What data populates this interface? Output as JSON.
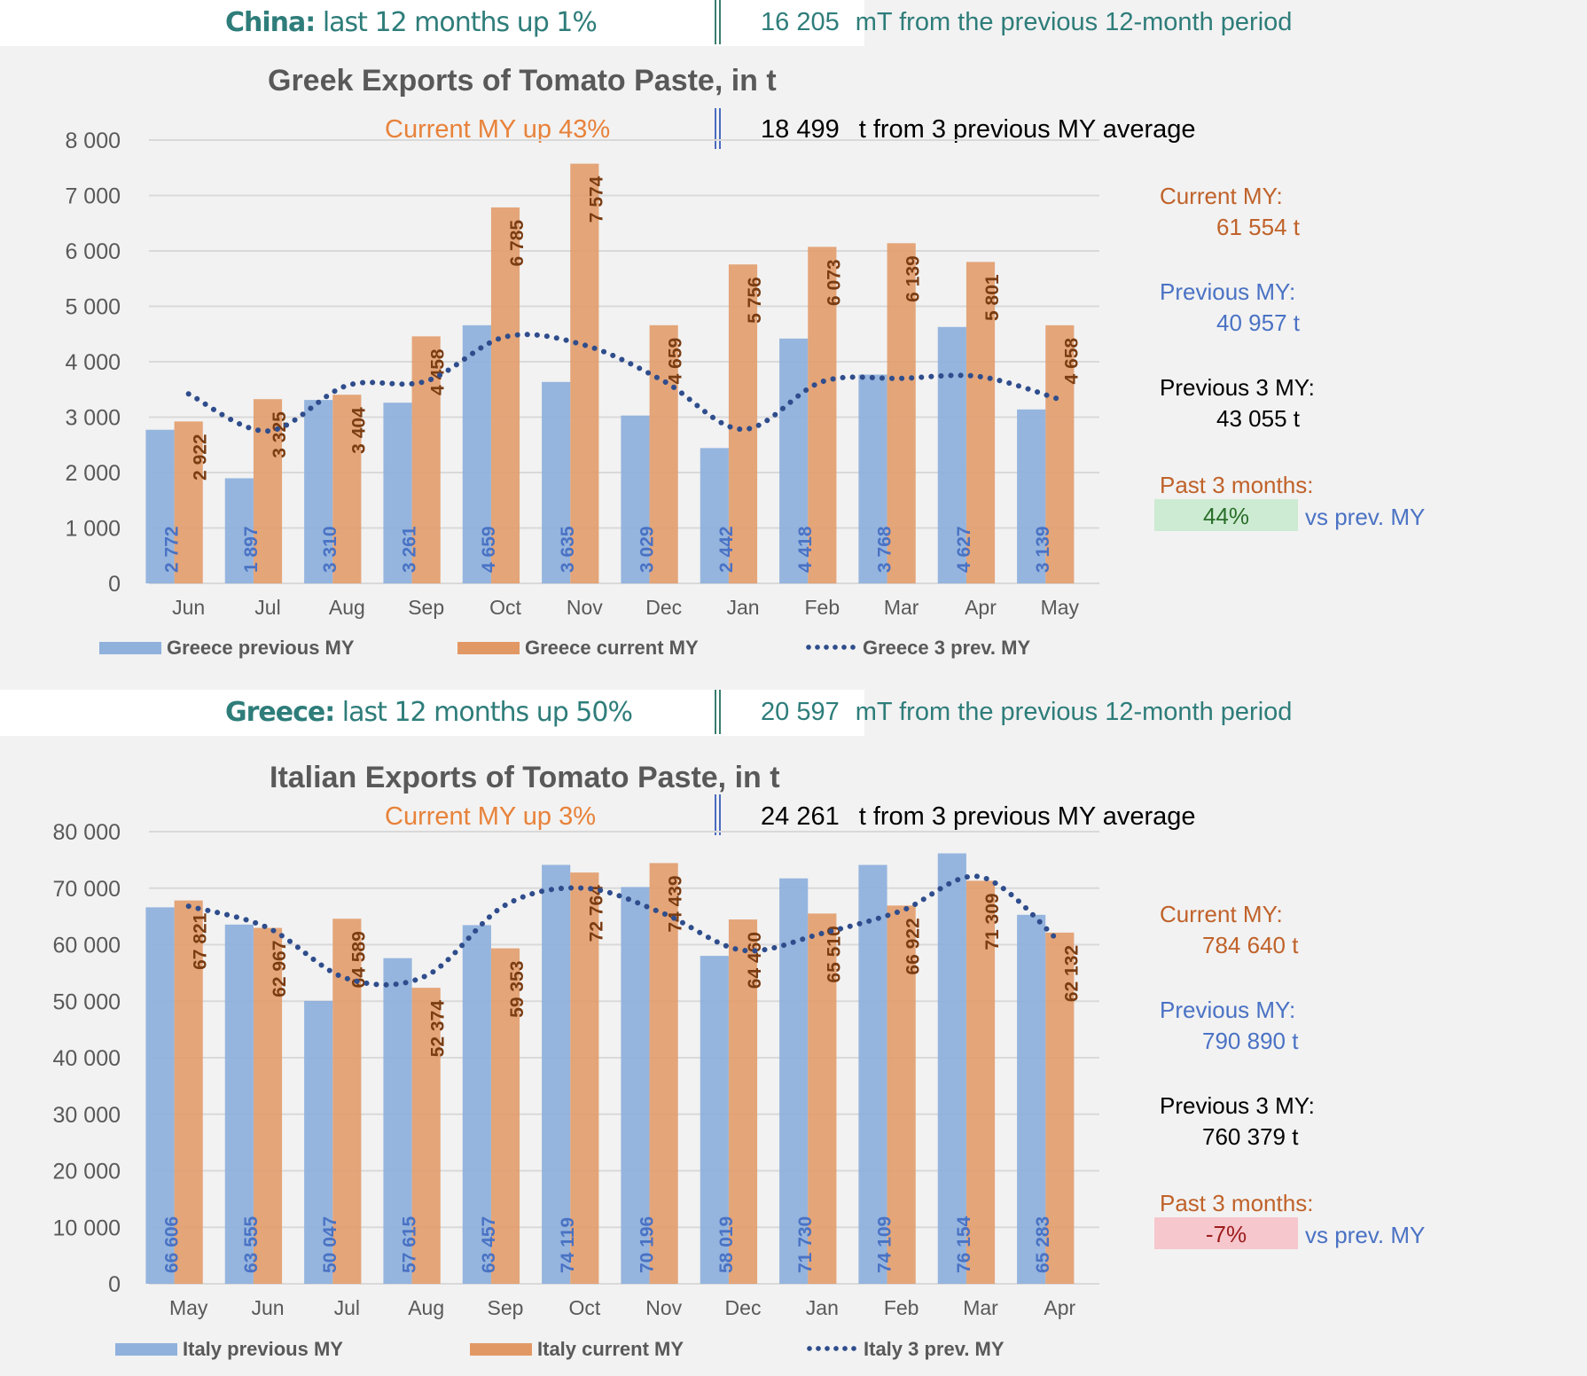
{
  "colors": {
    "prev_bar": "#8fb1dc",
    "curr_bar": "#e29864",
    "avg_line": "#2f4d8c",
    "prev_label": "#4a72c4",
    "curr_label": "#7a3c12",
    "grid": "#d9d9d9",
    "axis_text": "#595959"
  },
  "top_banner": {
    "country": "China:",
    "text": "last 12 months up  1%",
    "value": "16 205",
    "suffix": "mT from the previous 12-month period"
  },
  "greek": {
    "subtitle_left": "Current MY up  43%",
    "subtitle_value": "18 499",
    "subtitle_right": "t from 3 previous MY average",
    "side": {
      "current_label": "Current MY:",
      "current_value": "61 554  t",
      "previous_label": "Previous MY:",
      "previous_value": "40 957  t",
      "prev3_label": "Previous 3 MY:",
      "prev3_value": "43 055  t",
      "past3_label": "Past 3 months:",
      "past3_pct": "44%",
      "past3_suffix": "vs prev. MY"
    },
    "legend": {
      "prev": "Greece previous MY",
      "curr": "Greece current MY",
      "avg": "Greece 3 prev. MY"
    }
  },
  "mid_banner": {
    "country": "Greece:",
    "text": "last 12 months up  50%",
    "value": "20 597",
    "suffix": "mT from the previous 12-month period"
  },
  "italian": {
    "subtitle_left": "Current MY up  3%",
    "subtitle_value": "24 261",
    "subtitle_right": "t from 3 previous MY average",
    "side": {
      "current_label": "Current MY:",
      "current_value": "784 640  t",
      "previous_label": "Previous MY:",
      "previous_value": "790 890  t",
      "prev3_label": "Previous 3 MY:",
      "prev3_value": "760 379  t",
      "past3_label": "Past 3 months:",
      "past3_pct": "-7%",
      "past3_suffix": "vs prev. MY"
    },
    "legend": {
      "prev": "Italy previous MY",
      "curr": "Italy current MY",
      "avg": "Italy 3 prev. MY"
    }
  },
  "chart_data": [
    {
      "type": "bar",
      "title": "Greek Exports of Tomato Paste, in t",
      "xlabel": "",
      "ylabel": "",
      "ylim": [
        0,
        8000
      ],
      "yticks": [
        0,
        1000,
        2000,
        3000,
        4000,
        5000,
        6000,
        7000,
        8000
      ],
      "ytick_labels": [
        "0",
        "1 000",
        "2 000",
        "3 000",
        "4 000",
        "5 000",
        "6 000",
        "7 000",
        "8 000"
      ],
      "grid": true,
      "legend_position": "bottom",
      "categories": [
        "Jun",
        "Jul",
        "Aug",
        "Sep",
        "Oct",
        "Nov",
        "Dec",
        "Jan",
        "Feb",
        "Mar",
        "Apr",
        "May"
      ],
      "series": [
        {
          "name": "Greece previous MY",
          "kind": "bar",
          "values": [
            2772,
            1897,
            3310,
            3261,
            4659,
            3635,
            3029,
            2442,
            4418,
            3768,
            4627,
            3139
          ],
          "labels": [
            "2 772",
            "1 897",
            "3 310",
            "3 261",
            "4 659",
            "3 635",
            "3 029",
            "2 442",
            "4 418",
            "3 768",
            "4 627",
            "3 139"
          ]
        },
        {
          "name": "Greece current MY",
          "kind": "bar",
          "values": [
            2922,
            3325,
            3404,
            4458,
            6785,
            7574,
            4659,
            5756,
            6073,
            6139,
            5801,
            4658
          ],
          "labels": [
            "2 922",
            "3 325",
            "3 404",
            "4 458",
            "6 785",
            "7 574",
            "4 659",
            "5 756",
            "6 073",
            "6 139",
            "5 801",
            "4 658"
          ]
        },
        {
          "name": "Greece 3 prev. MY",
          "kind": "dotted-line",
          "values": [
            3420,
            2750,
            3570,
            3650,
            4450,
            4300,
            3650,
            2780,
            3640,
            3700,
            3730,
            3320
          ]
        }
      ]
    },
    {
      "type": "bar",
      "title": "Italian Exports of Tomato Paste, in t",
      "xlabel": "",
      "ylabel": "",
      "ylim": [
        0,
        80000
      ],
      "yticks": [
        0,
        10000,
        20000,
        30000,
        40000,
        50000,
        60000,
        70000,
        80000
      ],
      "ytick_labels": [
        "0",
        "10 000",
        "20 000",
        "30 000",
        "40 000",
        "50 000",
        "60 000",
        "70 000",
        "80 000"
      ],
      "grid": true,
      "legend_position": "bottom",
      "categories": [
        "May",
        "Jun",
        "Jul",
        "Aug",
        "Sep",
        "Oct",
        "Nov",
        "Dec",
        "Jan",
        "Feb",
        "Mar",
        "Apr"
      ],
      "series": [
        {
          "name": "Italy previous MY",
          "kind": "bar",
          "values": [
            66606,
            63555,
            50047,
            57615,
            63457,
            74119,
            70196,
            58019,
            71730,
            74109,
            76154,
            65283
          ],
          "labels": [
            "66 606",
            "63 555",
            "50 047",
            "57 615",
            "63 457",
            "74 119",
            "70 196",
            "58 019",
            "71 730",
            "74 109",
            "76 154",
            "65 283"
          ]
        },
        {
          "name": "Italy current MY",
          "kind": "bar",
          "values": [
            67821,
            62967,
            64589,
            52374,
            59353,
            72764,
            74439,
            64460,
            65510,
            66922,
            71309,
            62132
          ],
          "labels": [
            "67 821",
            "62 967",
            "64 589",
            "52 374",
            "59 353",
            "72 764",
            "74 439",
            "64 460",
            "65 510",
            "66 922",
            "71 309",
            "62 132"
          ]
        },
        {
          "name": "Italy 3 prev. MY",
          "kind": "dotted-line",
          "values": [
            66800,
            63000,
            54000,
            54500,
            67000,
            70000,
            65500,
            59000,
            62000,
            66000,
            72000,
            60500
          ]
        }
      ]
    }
  ]
}
